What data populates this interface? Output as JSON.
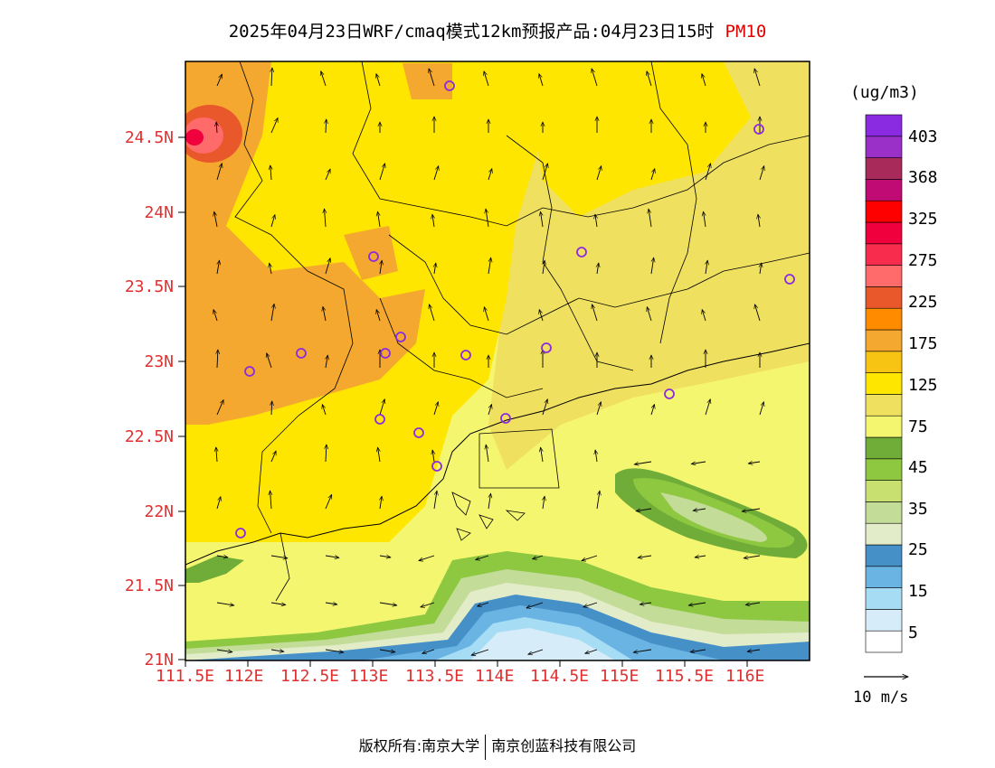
{
  "title": {
    "main": "2025年04月23日WRF/cmaq模式12km预报产品:04月23日15时",
    "variable": "PM10"
  },
  "map": {
    "lat_ticks": [
      "24.5N",
      "24N",
      "23.5N",
      "23N",
      "22.5N",
      "22N",
      "21.5N",
      "21N"
    ],
    "lon_ticks": [
      "111.5E",
      "112E",
      "112.5E",
      "113E",
      "113.5E",
      "114E",
      "114.5E",
      "115E",
      "115.5E",
      "116E"
    ],
    "extent": {
      "lon_min": 111.5,
      "lon_max": 116.5,
      "lat_min": 21.0,
      "lat_max": 25.0
    }
  },
  "colorbar": {
    "unit": "(ug/m3)",
    "colors": [
      "#ffffff",
      "#d6ecf8",
      "#a6dcf4",
      "#6ab4e4",
      "#4690c8",
      "#e3ecc9",
      "#c3dc98",
      "#c8e070",
      "#8ec840",
      "#70ac38",
      "#f4f670",
      "#f0e060",
      "#ffe600",
      "#f8c414",
      "#f4a830",
      "#ff8c00",
      "#e8582a",
      "#ff6a6a",
      "#f82c4c",
      "#f0003c",
      "#ff0000",
      "#c00a74",
      "#a82a5a",
      "#9a30c8",
      "#8a2be2"
    ],
    "labels": [
      "5",
      "15",
      "25",
      "35",
      "45",
      "75",
      "125",
      "175",
      "225",
      "275",
      "325",
      "368",
      "403"
    ]
  },
  "vector_reference": {
    "label": "10 m/s"
  },
  "footer": {
    "left": "版权所有:南京大学",
    "right": "南京创蓝科技有限公司"
  },
  "colors": {
    "tick_label": "#e03030",
    "variable_label": "#e00000",
    "station_marker": "#8a2be2"
  }
}
